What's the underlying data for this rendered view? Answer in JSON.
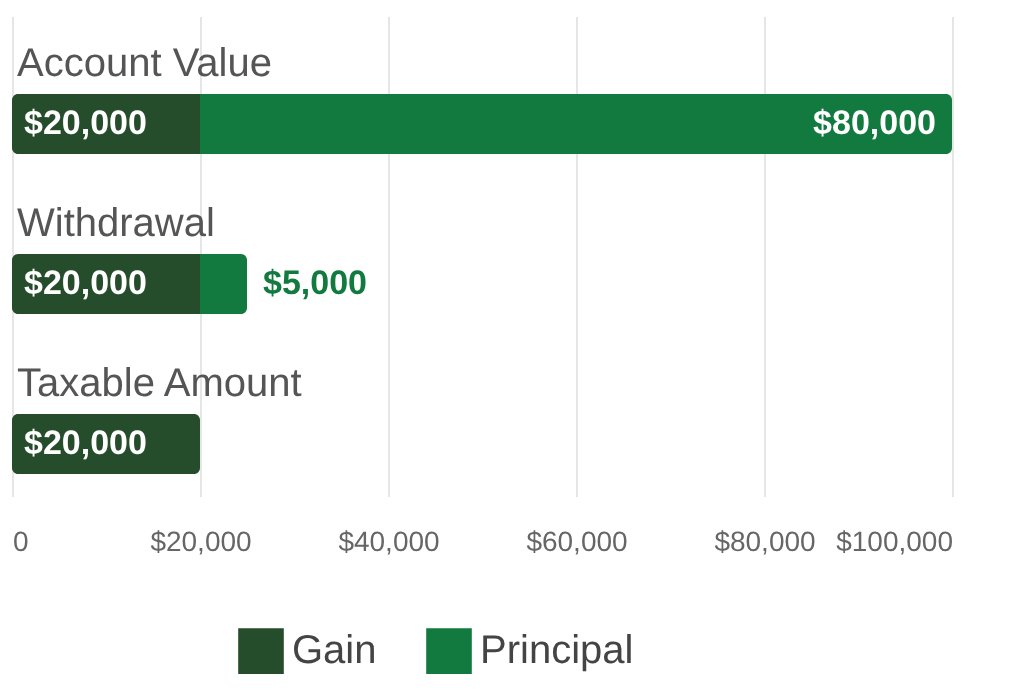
{
  "chart_data": {
    "type": "bar",
    "orientation": "horizontal",
    "stacked": true,
    "categories": [
      "Account Value",
      "Withdrawal",
      "Taxable Amount"
    ],
    "series": [
      {
        "name": "Gain",
        "color": "#264d2b",
        "values": [
          20000,
          20000,
          20000
        ],
        "value_labels": [
          "$20,000",
          "$20,000",
          "$20,000"
        ]
      },
      {
        "name": "Principal",
        "color": "#137a3f",
        "values": [
          80000,
          5000,
          null
        ],
        "value_labels": [
          "$80,000",
          "$5,000",
          null
        ]
      }
    ],
    "xlim": [
      0,
      100000
    ],
    "xticks": [
      0,
      {
        "value": 20000,
        "label": "$20,000"
      },
      {
        "value": 40000,
        "label": "$40,000"
      },
      {
        "value": 60000,
        "label": "$60,000"
      },
      {
        "value": 80000,
        "label": "$80,000"
      },
      {
        "value": 100000,
        "label": "$100,000"
      }
    ],
    "grid": "x",
    "legend": "bottom"
  }
}
